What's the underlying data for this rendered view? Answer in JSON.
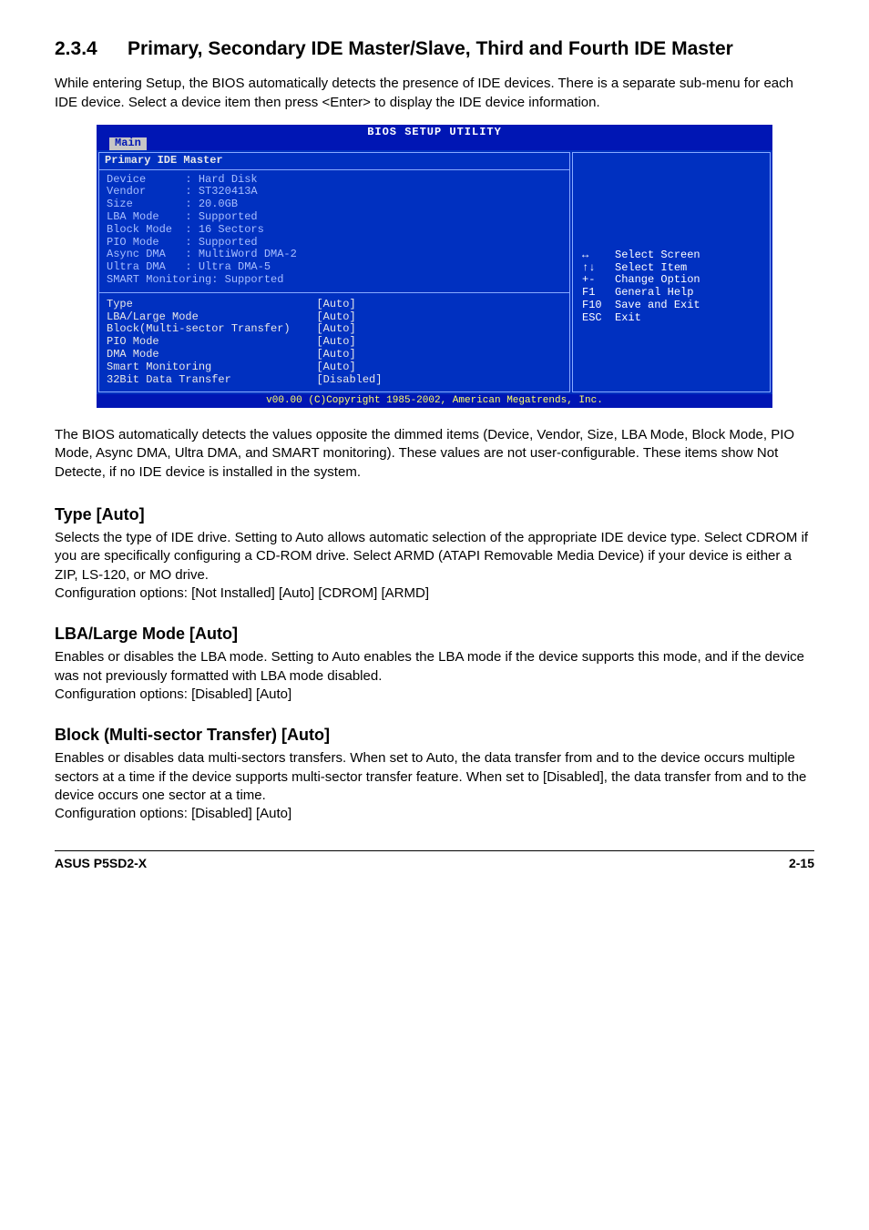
{
  "heading": {
    "number": "2.3.4",
    "title": "Primary, Secondary IDE Master/Slave, Third and Fourth IDE Master"
  },
  "intro": "While entering Setup, the BIOS automatically detects the presence of IDE devices. There is a separate sub-menu for each IDE device. Select a device item then press <Enter> to display the IDE device information.",
  "bios": {
    "brand": "BIOS SETUP UTILITY",
    "tab": "Main",
    "panel_title": "Primary IDE Master",
    "info_rows": [
      [
        "Device",
        "Hard Disk"
      ],
      [
        "Vendor",
        "ST320413A"
      ],
      [
        "Size",
        "20.0GB"
      ],
      [
        "LBA Mode",
        "Supported"
      ],
      [
        "Block Mode",
        "16 Sectors"
      ],
      [
        "PIO Mode",
        "Supported"
      ],
      [
        "Async DMA",
        "MultiWord DMA-2"
      ],
      [
        "Ultra DMA",
        "Ultra DMA-5"
      ]
    ],
    "info_last": "SMART Monitoring: Supported",
    "settings_rows": [
      [
        "Type",
        "[Auto]"
      ],
      [
        "LBA/Large Mode",
        "[Auto]"
      ],
      [
        "Block(Multi-sector Transfer)",
        "[Auto]"
      ],
      [
        "PIO Mode",
        "[Auto]"
      ],
      [
        "DMA Mode",
        "[Auto]"
      ],
      [
        "Smart Monitoring",
        "[Auto]"
      ],
      [
        "32Bit Data Transfer",
        "[Disabled]"
      ]
    ],
    "help_rows": [
      [
        "↔",
        "Select Screen"
      ],
      [
        "↑↓",
        "Select Item"
      ],
      [
        "+-",
        "Change Option"
      ],
      [
        "F1",
        "General Help"
      ],
      [
        "F10",
        "Save and Exit"
      ],
      [
        "ESC",
        "Exit"
      ]
    ],
    "footer": "v00.00 (C)Copyright 1985-2002, American Megatrends, Inc."
  },
  "para_after_bios": "The BIOS automatically detects the values opposite the dimmed items (Device, Vendor, Size, LBA Mode, Block Mode, PIO Mode, Async DMA, Ultra DMA, and SMART monitoring). These values are not user-configurable. These items show Not Detecte, if no IDE device is installed in the system.",
  "sections": [
    {
      "head": "Type [Auto]",
      "body": "Selects the type of IDE drive. Setting to Auto allows automatic selection of the appropriate IDE device type. Select CDROM if you are specifically configuring a CD-ROM drive. Select ARMD (ATAPI Removable Media Device) if your device is either a ZIP, LS-120, or MO drive.\nConfiguration options: [Not Installed] [Auto] [CDROM] [ARMD]"
    },
    {
      "head": "LBA/Large Mode [Auto]",
      "body": "Enables or disables the LBA mode. Setting to Auto enables the LBA mode if the device supports this mode, and if the device was not previously formatted with LBA mode disabled.\nConfiguration options: [Disabled] [Auto]"
    },
    {
      "head": "Block (Multi-sector Transfer) [Auto]",
      "body": "Enables or disables data multi-sectors transfers. When set to Auto, the data transfer from and to the device occurs multiple sectors at a time if the device supports multi-sector transfer feature. When set to [Disabled], the data transfer from and to the device occurs one sector at a time.\nConfiguration options: [Disabled] [Auto]"
    }
  ],
  "footer": {
    "left": "ASUS P5SD2-X",
    "right": "2-15"
  }
}
